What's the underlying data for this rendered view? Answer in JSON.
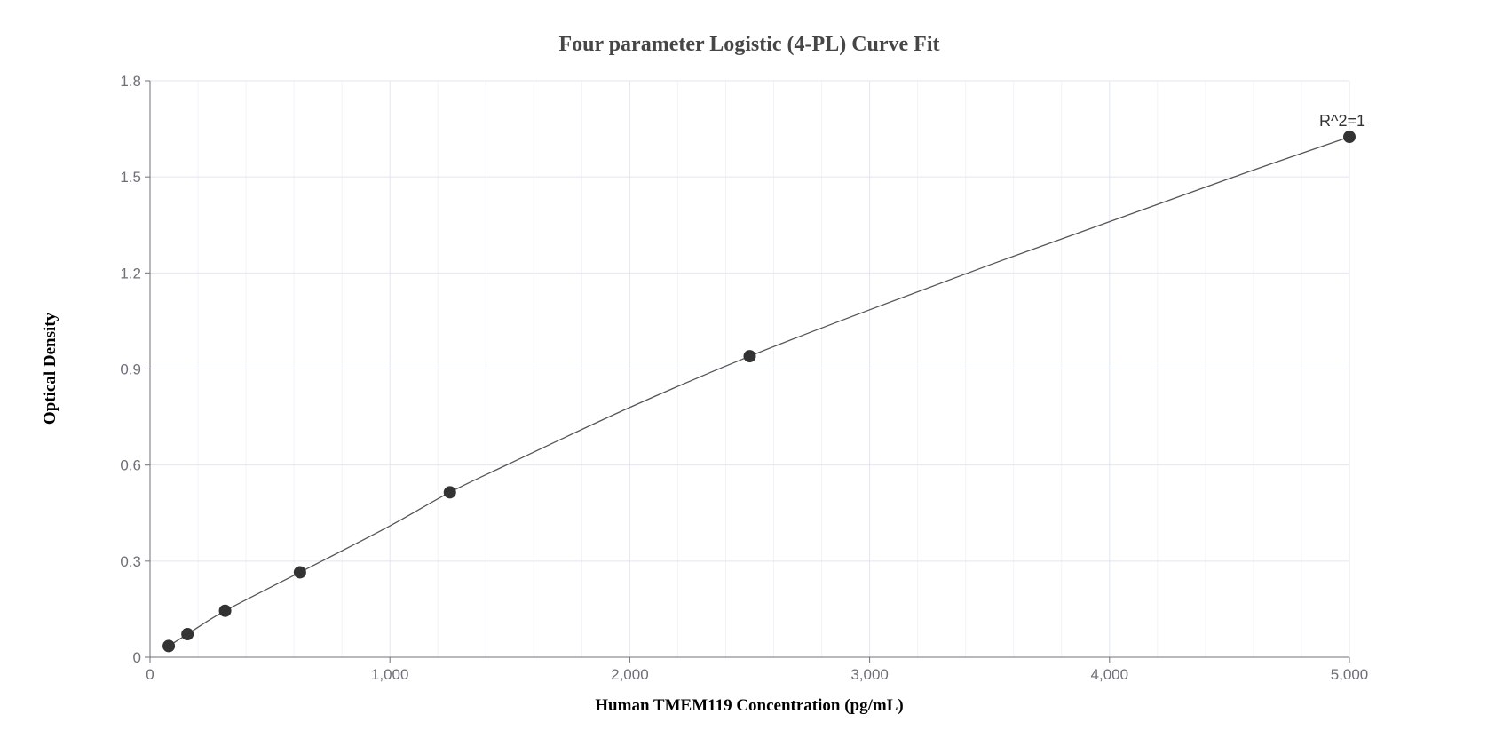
{
  "chart_data": {
    "type": "scatter",
    "title": "Four parameter Logistic (4-PL) Curve Fit",
    "xlabel": "Human TMEM119 Concentration (pg/mL)",
    "ylabel": "Optical Density",
    "xlim": [
      0,
      5000
    ],
    "ylim": [
      0,
      1.8
    ],
    "x_ticks": [
      0,
      1000,
      2000,
      3000,
      4000,
      5000
    ],
    "x_tick_labels": [
      "0",
      "1,000",
      "2,000",
      "3,000",
      "4,000",
      "5,000"
    ],
    "y_ticks": [
      0,
      0.3,
      0.6,
      0.9,
      1.2,
      1.5,
      1.8
    ],
    "y_tick_labels": [
      "0",
      "0.3",
      "0.6",
      "0.9",
      "1.2",
      "1.5",
      "1.8"
    ],
    "grid": true,
    "points": [
      {
        "x": 78,
        "y": 0.035
      },
      {
        "x": 156,
        "y": 0.072
      },
      {
        "x": 313,
        "y": 0.145
      },
      {
        "x": 625,
        "y": 0.265
      },
      {
        "x": 1250,
        "y": 0.515
      },
      {
        "x": 2500,
        "y": 0.94
      },
      {
        "x": 5000,
        "y": 1.625
      }
    ],
    "fit_curve": {
      "model": "4PL",
      "x": [
        78,
        156,
        313,
        625,
        1000,
        1250,
        1500,
        2000,
        2500,
        3000,
        3500,
        4000,
        4500,
        5000
      ],
      "y": [
        0.035,
        0.072,
        0.145,
        0.265,
        0.41,
        0.515,
        0.605,
        0.78,
        0.94,
        1.085,
        1.225,
        1.36,
        1.495,
        1.625
      ]
    },
    "annotation": "R^2=1",
    "colors": {
      "point": "#333333",
      "curve": "#555555",
      "grid_major": "#e0e6f1",
      "grid_minor": "#f1f3f8",
      "axis": "#6e7079"
    }
  }
}
